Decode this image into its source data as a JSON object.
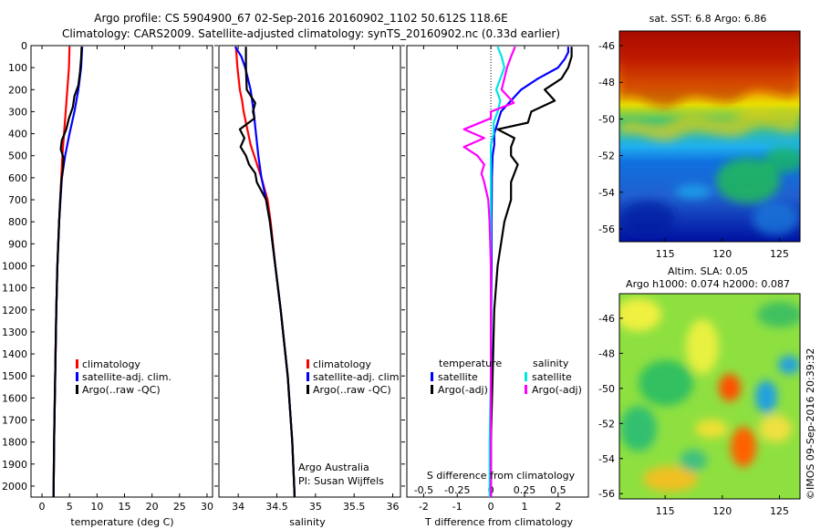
{
  "header": {
    "line1": "Argo profile: CS 5904900_67 02-Sep-2016 20160902_1102 50.612S 118.6E",
    "line2": "Climatology: CARS2009. Satellite-adjusted climatology: synTS_20160902.nc (0.33d earlier)"
  },
  "depth_ticks": [
    0,
    100,
    200,
    300,
    400,
    500,
    600,
    700,
    800,
    900,
    1000,
    1100,
    1200,
    1300,
    1400,
    1500,
    1600,
    1700,
    1800,
    1900,
    2000
  ],
  "colors": {
    "climatology": "#ff0000",
    "satellite": "#0000ff",
    "argo": "#000000",
    "cyan": "#00e5e5",
    "magenta": "#ff00ff"
  },
  "chart_data": [
    {
      "type": "line",
      "panel": "temperature",
      "xlabel": "temperature (deg C)",
      "xlim": [
        -2,
        31
      ],
      "ylim": [
        2050,
        0
      ],
      "x_ticks": [
        0,
        5,
        10,
        15,
        20,
        25,
        30
      ],
      "legend": [
        "climatology",
        "satellite-adj. clim.",
        "Argo(..raw -QC)"
      ],
      "legend_placement": "lower-center",
      "series": [
        {
          "name": "climatology",
          "color": "#ff0000",
          "depth": [
            5,
            100,
            200,
            300,
            400,
            500,
            600,
            800,
            1000,
            1200,
            1500,
            1800,
            2050
          ],
          "x": [
            5.0,
            4.9,
            4.6,
            4.3,
            4.0,
            3.7,
            3.5,
            3.1,
            2.8,
            2.6,
            2.4,
            2.2,
            2.1
          ]
        },
        {
          "name": "satellite-adj. clim.",
          "color": "#0000ff",
          "depth": [
            5,
            100,
            200,
            300,
            400,
            500,
            600,
            800,
            1000,
            1200,
            1500,
            1800,
            2050
          ],
          "x": [
            7.3,
            7.1,
            6.6,
            5.9,
            5.0,
            4.2,
            3.6,
            3.1,
            2.8,
            2.6,
            2.4,
            2.2,
            2.1
          ]
        },
        {
          "name": "Argo(..raw -QC)",
          "color": "#000000",
          "depth": [
            5,
            60,
            120,
            180,
            230,
            280,
            330,
            380,
            430,
            470,
            510,
            560,
            620,
            700,
            800,
            1000,
            1200,
            1500,
            1800,
            2050
          ],
          "x": [
            7.2,
            7.1,
            6.9,
            6.6,
            5.9,
            5.6,
            4.9,
            4.4,
            3.6,
            3.4,
            3.9,
            3.8,
            3.5,
            3.3,
            3.1,
            2.8,
            2.6,
            2.4,
            2.2,
            2.1
          ]
        }
      ]
    },
    {
      "type": "line",
      "panel": "salinity",
      "xlabel": "salinity",
      "xlim": [
        33.75,
        36.1
      ],
      "ylim": [
        2050,
        0
      ],
      "x_ticks": [
        34,
        34.5,
        35,
        35.5,
        36
      ],
      "legend": [
        "climatology",
        "satellite-adj. clim.",
        "Argo(..raw -QC)"
      ],
      "legend_placement": "lower-right",
      "annotation": [
        "Argo Australia",
        "PI: Susan Wijffels"
      ],
      "series": [
        {
          "name": "climatology",
          "color": "#ff0000",
          "depth": [
            5,
            100,
            200,
            250,
            300,
            350,
            450,
            600,
            700,
            800,
            1000,
            1200,
            1500,
            1800,
            2050
          ],
          "x": [
            33.97,
            33.99,
            34.02,
            34.05,
            34.07,
            34.1,
            34.16,
            34.3,
            34.38,
            34.42,
            34.48,
            34.55,
            34.64,
            34.7,
            34.73
          ]
        },
        {
          "name": "satellite-adj. clim.",
          "color": "#0000ff",
          "depth": [
            5,
            50,
            100,
            200,
            300,
            400,
            500,
            600,
            700,
            800,
            1000,
            1200,
            1500,
            1800,
            2050
          ],
          "x": [
            33.96,
            34.04,
            34.09,
            34.16,
            34.2,
            34.23,
            34.26,
            34.3,
            34.36,
            34.41,
            34.48,
            34.55,
            34.64,
            34.7,
            34.73
          ]
        },
        {
          "name": "Argo(..raw -QC)",
          "color": "#000000",
          "depth": [
            5,
            100,
            200,
            260,
            300,
            330,
            380,
            420,
            460,
            500,
            540,
            580,
            620,
            660,
            700,
            800,
            1000,
            1200,
            1500,
            1800,
            2050
          ],
          "x": [
            34.1,
            34.1,
            34.11,
            34.22,
            34.19,
            34.21,
            34.02,
            34.08,
            34.03,
            34.1,
            34.14,
            34.22,
            34.24,
            34.3,
            34.36,
            34.41,
            34.48,
            34.55,
            34.64,
            34.7,
            34.73
          ]
        }
      ]
    },
    {
      "type": "line",
      "panel": "difference",
      "xlabel": "T difference from climatology",
      "xlabel_top": "S difference from climatology",
      "xlim": [
        -2.5,
        2.9
      ],
      "x2lim": [
        -0.625,
        0.725
      ],
      "ylim": [
        2050,
        0
      ],
      "x_ticks": [
        -2,
        -1,
        0,
        1,
        2
      ],
      "x2_ticks": [
        -0.5,
        -0.25,
        0,
        0.25,
        0.5
      ],
      "legend_titles": [
        "temperature",
        "salinity"
      ],
      "legend": [
        "satellite",
        "Argo(-adj)",
        "satellite",
        "Argo(-adj)"
      ],
      "legend_placement": "lower-center",
      "series": [
        {
          "name": "satellite",
          "group": "temperature",
          "axis": "T",
          "color": "#0000ff",
          "depth": [
            5,
            30,
            60,
            100,
            150,
            200,
            250,
            300,
            350,
            400,
            450,
            500,
            600,
            800,
            1000,
            1200,
            1500,
            1800,
            2050
          ],
          "x": [
            2.3,
            2.3,
            2.2,
            2.0,
            1.4,
            0.9,
            0.6,
            0.3,
            0.2,
            0.1,
            0.1,
            0.05,
            0.03,
            0.02,
            0.02,
            0.01,
            0.01,
            0.0,
            0.0
          ]
        },
        {
          "name": "Argo(-adj)",
          "group": "temperature",
          "axis": "T",
          "color": "#000000",
          "depth": [
            5,
            50,
            100,
            150,
            200,
            250,
            300,
            350,
            380,
            420,
            460,
            500,
            540,
            580,
            620,
            700,
            800,
            1000,
            1200,
            1500,
            1800,
            2050
          ],
          "x": [
            2.4,
            2.4,
            2.3,
            2.1,
            1.6,
            1.9,
            1.2,
            1.1,
            0.2,
            0.7,
            0.6,
            0.6,
            0.8,
            0.7,
            0.6,
            0.6,
            0.4,
            0.2,
            0.1,
            0.05,
            0.0,
            0.0
          ]
        },
        {
          "name": "satellite",
          "group": "salinity",
          "axis": "S",
          "color": "#00e5e5",
          "depth": [
            5,
            50,
            100,
            150,
            200,
            250,
            300,
            350,
            400,
            450,
            500,
            600,
            800,
            1000,
            1200,
            1500,
            1800,
            2050
          ],
          "x": [
            0.05,
            0.08,
            0.1,
            0.07,
            0.04,
            0.07,
            0.05,
            0.02,
            0.02,
            0.0,
            0.0,
            0.0,
            0.0,
            0.0,
            0.0,
            0.0,
            -0.01,
            -0.01
          ]
        },
        {
          "name": "Argo(-adj)",
          "group": "salinity",
          "axis": "S",
          "color": "#ff00ff",
          "depth": [
            5,
            50,
            100,
            200,
            260,
            300,
            330,
            380,
            420,
            460,
            500,
            540,
            580,
            620,
            700,
            800,
            1000,
            1200,
            1500,
            1800,
            2050
          ],
          "x": [
            0.18,
            0.15,
            0.12,
            0.08,
            0.17,
            0.0,
            0.0,
            -0.2,
            -0.05,
            -0.2,
            -0.1,
            -0.05,
            -0.07,
            -0.05,
            -0.02,
            -0.01,
            0.0,
            0.0,
            0.0,
            0.0,
            0.0
          ]
        }
      ]
    },
    {
      "type": "heatmap",
      "panel": "sst_map",
      "title": "sat. SST: 6.8 Argo: 6.86",
      "xlim": [
        111,
        126.8
      ],
      "ylim": [
        -56.7,
        -45.2
      ],
      "x_ticks": [
        115,
        120,
        125
      ],
      "y_ticks": [
        -46,
        -48,
        -50,
        -52,
        -54,
        -56
      ],
      "colormap": "jet"
    },
    {
      "type": "heatmap",
      "panel": "sla_map",
      "title_lines": [
        "Altim. SLA: 0.05",
        "Argo h1000: 0.074 h2000: 0.087"
      ],
      "xlim": [
        111,
        126.8
      ],
      "ylim": [
        -56.3,
        -44.6
      ],
      "x_ticks": [
        115,
        120,
        125
      ],
      "y_ticks": [
        -46,
        -48,
        -50,
        -52,
        -54,
        -56
      ],
      "colormap": "jet"
    }
  ],
  "footer": {
    "credit": "©IMOS 09-Sep-2016 20:39:32"
  }
}
